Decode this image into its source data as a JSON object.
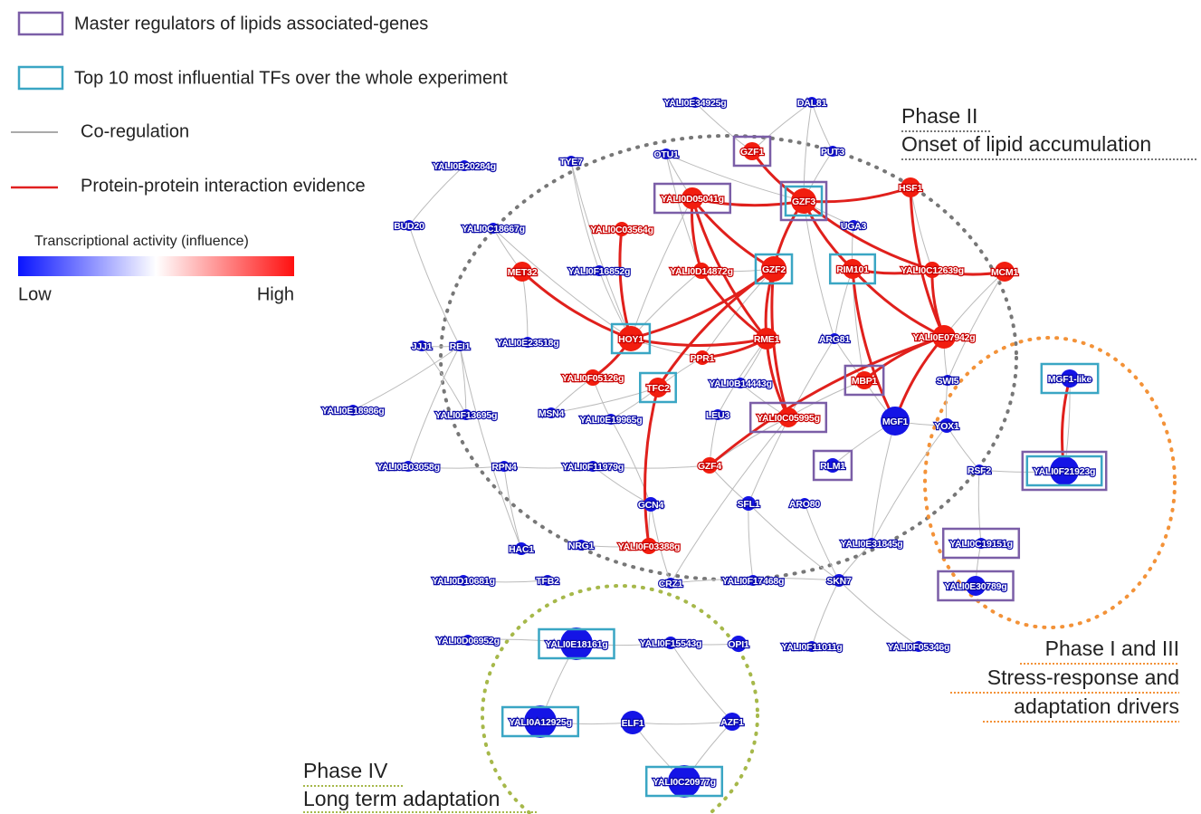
{
  "legend": {
    "items": [
      "Master regulators of lipids associated-genes",
      "Top 10 most influential TFs over the whole experiment",
      "Co-regulation",
      "Protein-protein interaction evidence"
    ],
    "colorbar": {
      "title": "Transcriptional activity (influence)",
      "low": "Low",
      "high": "High"
    }
  },
  "phases": [
    {
      "lines": [
        "Phase II",
        "Onset of lipid accumulation"
      ]
    },
    {
      "lines": [
        "Phase I and III",
        "Stress-response and",
        "adaptation drivers"
      ]
    },
    {
      "lines": [
        "Phase IV",
        "Long term adaptation"
      ]
    }
  ],
  "nodes": [
    {
      "label": "YALI0E34925g"
    },
    {
      "label": "DAL81"
    },
    {
      "label": "TYE7"
    },
    {
      "label": "OTU1"
    },
    {
      "label": "GZF1"
    },
    {
      "label": "PUT3"
    },
    {
      "label": "YALI0B20284g"
    },
    {
      "label": "YALI0D05041g"
    },
    {
      "label": "GZF3"
    },
    {
      "label": "HSF1"
    },
    {
      "label": "UGA3"
    },
    {
      "label": "BUD20"
    },
    {
      "label": "YALI0C18667g"
    },
    {
      "label": "YALI0C03564g"
    },
    {
      "label": "MET32"
    },
    {
      "label": "YALI0F16852g"
    },
    {
      "label": "YALI0D14872g"
    },
    {
      "label": "GZF2"
    },
    {
      "label": "RIM101"
    },
    {
      "label": "YALI0C12639g"
    },
    {
      "label": "MCM1"
    },
    {
      "label": "HOY1"
    },
    {
      "label": "PPR1"
    },
    {
      "label": "RME1"
    },
    {
      "label": "ARG81"
    },
    {
      "label": "YALI0E07942g"
    },
    {
      "label": "JJJ1"
    },
    {
      "label": "REI1"
    },
    {
      "label": "YALI0E23518g"
    },
    {
      "label": "YALI0F05126g"
    },
    {
      "label": "TFC2"
    },
    {
      "label": "YALI0B14443g"
    },
    {
      "label": "MBP1"
    },
    {
      "label": "SWI5"
    },
    {
      "label": "MGF1-like"
    },
    {
      "label": "YALI0E18986g"
    },
    {
      "label": "YALI0F13695g"
    },
    {
      "label": "MSN4"
    },
    {
      "label": "YALI0E19965g"
    },
    {
      "label": "LEU3"
    },
    {
      "label": "YALI0C05995g"
    },
    {
      "label": "MGF1"
    },
    {
      "label": "YOX1"
    },
    {
      "label": "YALI0F21923g"
    },
    {
      "label": "YALI0B03058g"
    },
    {
      "label": "RPN4"
    },
    {
      "label": "YALI0F11979g"
    },
    {
      "label": "GZF4"
    },
    {
      "label": "RLM1"
    },
    {
      "label": "RSF2"
    },
    {
      "label": "GCN4"
    },
    {
      "label": "SFL1"
    },
    {
      "label": "ARO80"
    },
    {
      "label": "HAC1"
    },
    {
      "label": "NRG1"
    },
    {
      "label": "YALI0F03388g"
    },
    {
      "label": "YALI0E31845g"
    },
    {
      "label": "YALI0C19151g"
    },
    {
      "label": "YALI0D10681g"
    },
    {
      "label": "TFB2"
    },
    {
      "label": "CRZ1"
    },
    {
      "label": "YALI0F17468g"
    },
    {
      "label": "SKN7"
    },
    {
      "label": "YALI0E30789g"
    },
    {
      "label": "YALI0D06952g"
    },
    {
      "label": "YALI0E18161g"
    },
    {
      "label": "YALI0F15543g"
    },
    {
      "label": "OPI1"
    },
    {
      "label": "YALI0F11011g"
    },
    {
      "label": "YALI0F05346g"
    },
    {
      "label": "YALI0A12925g"
    },
    {
      "label": "ELF1"
    },
    {
      "label": "AZF1"
    },
    {
      "label": "YALI0C20977g"
    }
  ]
}
